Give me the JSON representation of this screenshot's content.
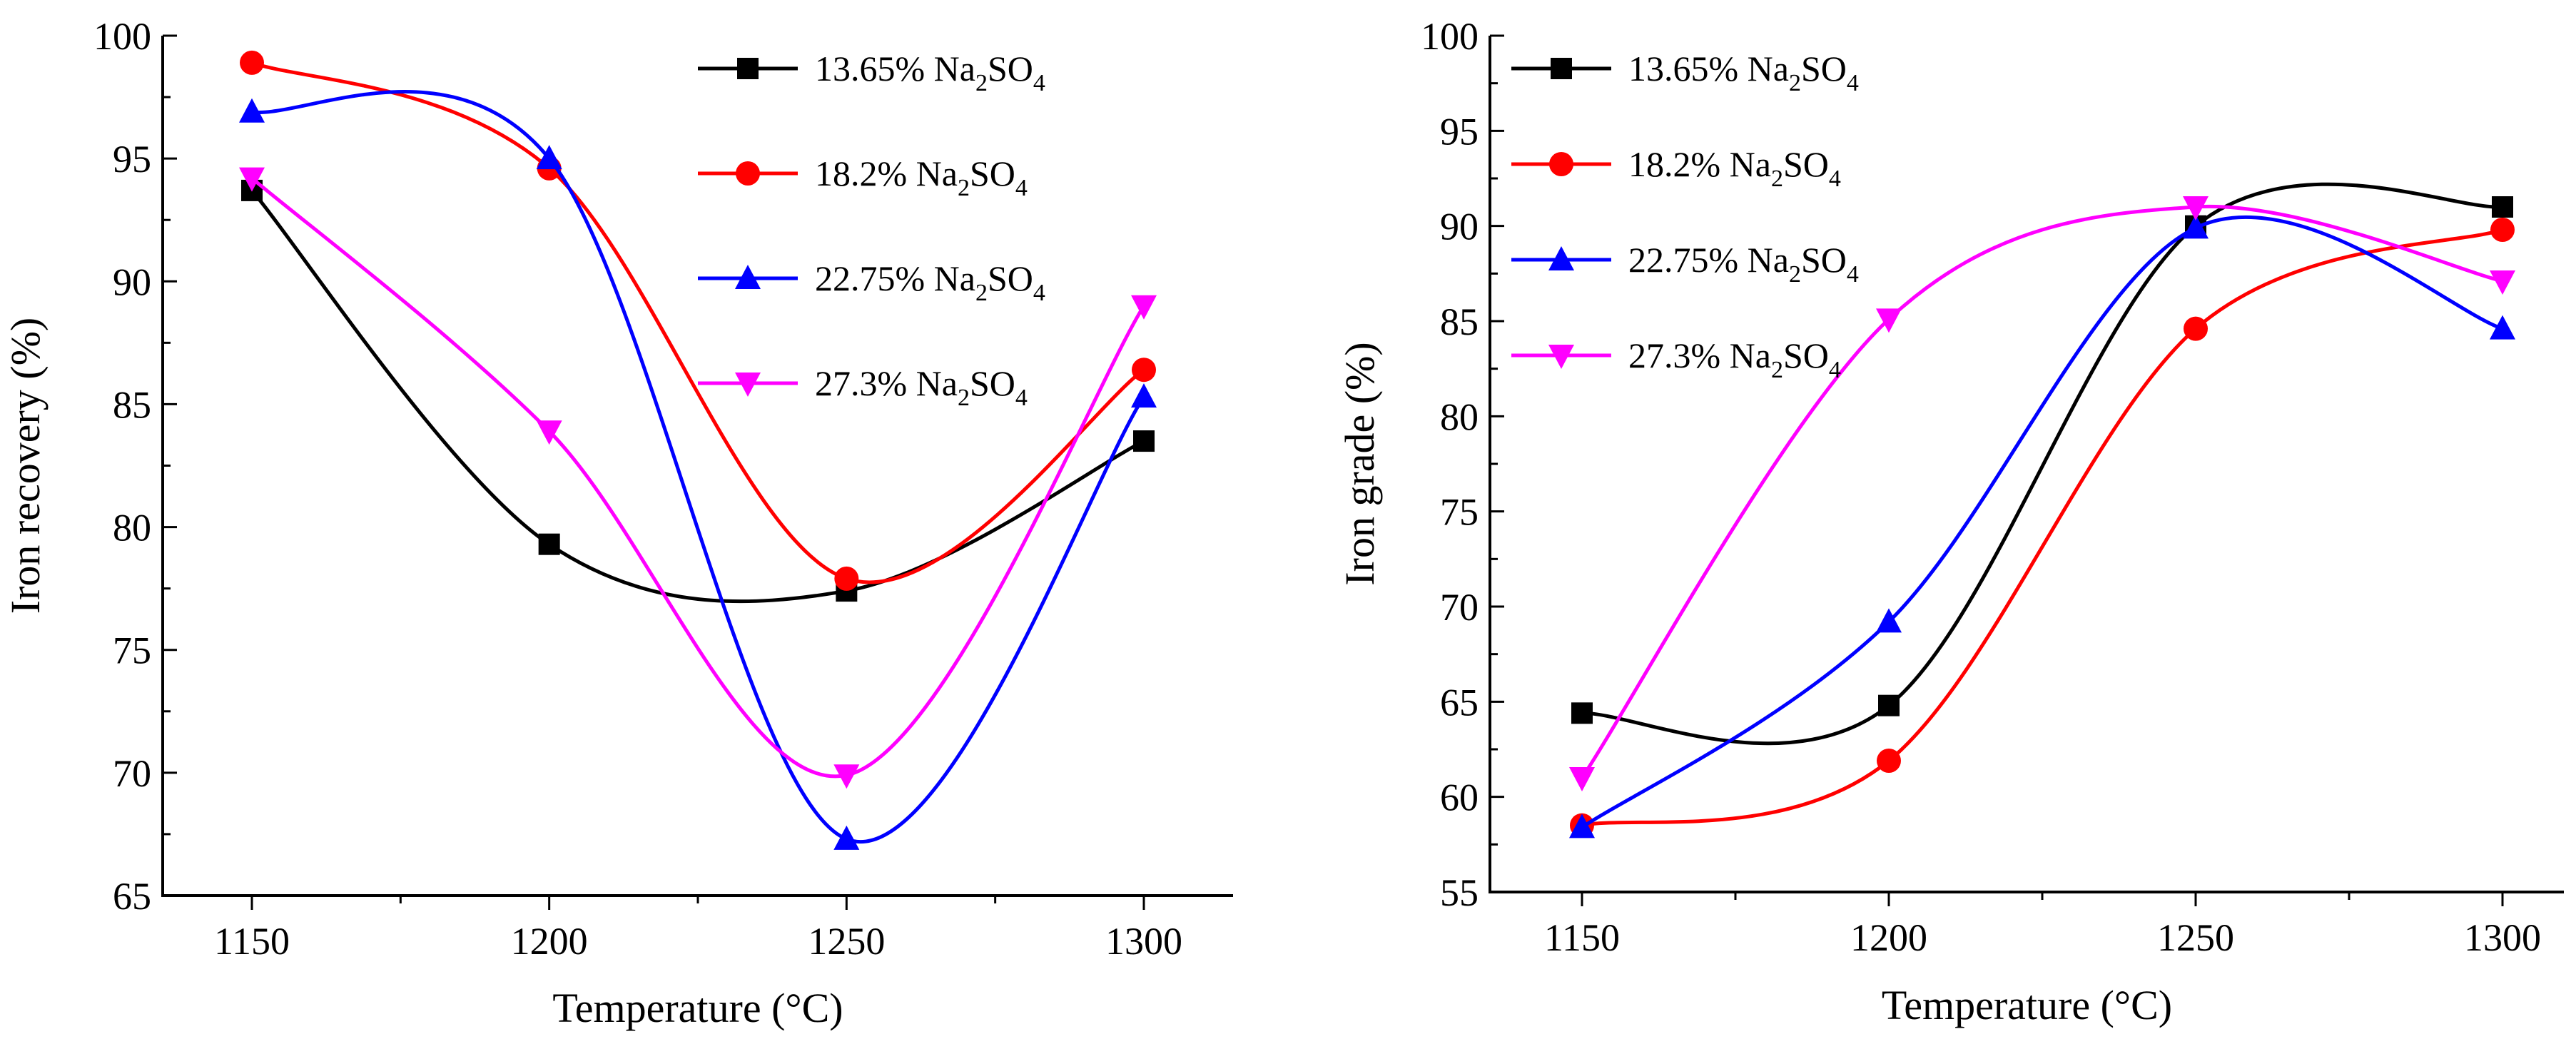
{
  "chart_data": [
    {
      "type": "line",
      "smoothed": true,
      "xlabel": "Temperature (°C)",
      "ylabel": "Iron recovery (%)",
      "x": [
        1150,
        1200,
        1250,
        1300
      ],
      "xlim": [
        1135,
        1315
      ],
      "ylim": [
        65,
        100
      ],
      "xticks": [
        1150,
        1200,
        1250,
        1300
      ],
      "yticks": [
        65,
        70,
        75,
        80,
        85,
        90,
        95,
        100
      ],
      "legend_position": "top-right",
      "series": [
        {
          "name_pre": "13.65% Na",
          "name_sub1": "2",
          "name_mid": "SO",
          "name_sub2": "4",
          "color": "#000000",
          "marker": "square",
          "values": [
            93.7,
            79.3,
            77.4,
            83.5
          ]
        },
        {
          "name_pre": "18.2% Na",
          "name_sub1": "2",
          "name_mid": "SO",
          "name_sub2": "4",
          "color": "#ff0000",
          "marker": "circle",
          "values": [
            98.9,
            94.6,
            77.9,
            86.4
          ]
        },
        {
          "name_pre": "22.75% Na",
          "name_sub1": "2",
          "name_mid": "SO",
          "name_sub2": "4",
          "color": "#0000ff",
          "marker": "triangle-up",
          "values": [
            96.9,
            95.0,
            67.3,
            85.3
          ]
        },
        {
          "name_pre": "27.3% Na",
          "name_sub1": "2",
          "name_mid": "SO",
          "name_sub2": "4",
          "color": "#ff00ff",
          "marker": "triangle-down",
          "values": [
            94.2,
            83.9,
            69.9,
            89.0
          ]
        }
      ]
    },
    {
      "type": "line",
      "smoothed": true,
      "xlabel": "Temperature (°C)",
      "ylabel": "Iron grade (%)",
      "x": [
        1150,
        1200,
        1250,
        1300
      ],
      "xlim": [
        1135,
        1310
      ],
      "ylim": [
        55,
        100
      ],
      "xticks": [
        1150,
        1200,
        1250,
        1300
      ],
      "yticks": [
        55,
        60,
        65,
        70,
        75,
        80,
        85,
        90,
        95,
        100
      ],
      "legend_position": "top-left",
      "series": [
        {
          "name_pre": "13.65% Na",
          "name_sub1": "2",
          "name_mid": "SO",
          "name_sub2": "4",
          "color": "#000000",
          "marker": "square",
          "values": [
            64.4,
            64.8,
            90.0,
            91.0
          ]
        },
        {
          "name_pre": "18.2% Na",
          "name_sub1": "2",
          "name_mid": "SO",
          "name_sub2": "4",
          "color": "#ff0000",
          "marker": "circle",
          "values": [
            58.5,
            61.9,
            84.6,
            89.8
          ]
        },
        {
          "name_pre": "22.75% Na",
          "name_sub1": "2",
          "name_mid": "SO",
          "name_sub2": "4",
          "color": "#0000ff",
          "marker": "triangle-up",
          "values": [
            58.4,
            69.2,
            89.9,
            84.6
          ]
        },
        {
          "name_pre": "27.3% Na",
          "name_sub1": "2",
          "name_mid": "SO",
          "name_sub2": "4",
          "color": "#ff00ff",
          "marker": "triangle-down",
          "values": [
            61.0,
            85.1,
            91.0,
            87.1
          ]
        }
      ]
    }
  ]
}
